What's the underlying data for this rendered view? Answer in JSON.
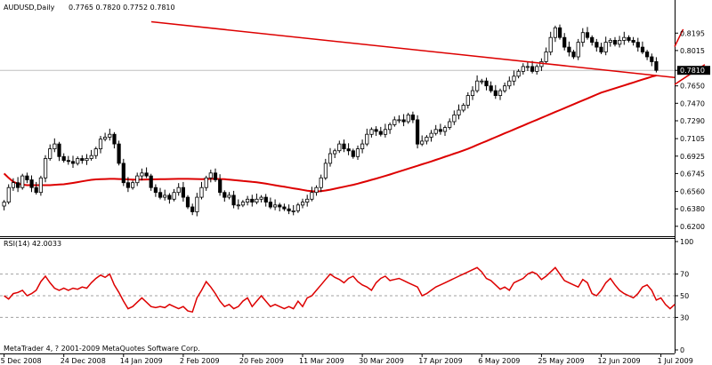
{
  "main_header": {
    "symbol": "AUDUSD,Daily",
    "ohlc": "0.7765 0.7820 0.7752 0.7810"
  },
  "rsi_header": "RSI(14) 42.0033",
  "copyright": "MetaTrader 4, ? 2001-2009 MetaQuotes Software Corp.",
  "colors": {
    "candle_bull_fill": "#ffffff",
    "candle_bear_fill": "#000000",
    "ma_line": "#dd0000",
    "trendline": "#dd0000",
    "rsi_line": "#dd0000",
    "axis": "#000000"
  },
  "chart_data": [
    {
      "type": "candlestick",
      "title": "AUDUSD,Daily",
      "ylim": [
        0.618,
        0.839
      ],
      "y_ticks": [
        "0.8195",
        "0.8015",
        "0.7810",
        "0.7650",
        "0.7470",
        "0.7290",
        "0.7105",
        "0.6925",
        "0.6745",
        "0.6560",
        "0.6380",
        "0.6200"
      ],
      "current_price_label": "0.7810",
      "x_tick_labels": [
        "5 Dec 2008",
        "24 Dec 2008",
        "14 Jan 2009",
        "2 Feb 2009",
        "20 Feb 2009",
        "11 Mar 2009",
        "30 Mar 2009",
        "17 Apr 2009",
        "6 May 2009",
        "25 May 2009",
        "12 Jun 2009",
        "1 Jul 2009"
      ],
      "close": [
        0.645,
        0.66,
        0.665,
        0.66,
        0.672,
        0.668,
        0.66,
        0.655,
        0.67,
        0.69,
        0.7,
        0.705,
        0.692,
        0.688,
        0.687,
        0.685,
        0.69,
        0.688,
        0.69,
        0.693,
        0.7,
        0.71,
        0.712,
        0.715,
        0.705,
        0.685,
        0.665,
        0.66,
        0.665,
        0.672,
        0.675,
        0.672,
        0.66,
        0.655,
        0.65,
        0.652,
        0.648,
        0.655,
        0.66,
        0.65,
        0.64,
        0.635,
        0.65,
        0.66,
        0.67,
        0.675,
        0.668,
        0.655,
        0.65,
        0.652,
        0.642,
        0.642,
        0.645,
        0.648,
        0.645,
        0.648,
        0.65,
        0.645,
        0.64,
        0.642,
        0.64,
        0.638,
        0.636,
        0.636,
        0.642,
        0.645,
        0.648,
        0.655,
        0.66,
        0.67,
        0.685,
        0.695,
        0.698,
        0.705,
        0.7,
        0.698,
        0.692,
        0.7,
        0.705,
        0.715,
        0.72,
        0.718,
        0.715,
        0.72,
        0.725,
        0.73,
        0.73,
        0.728,
        0.735,
        0.73,
        0.705,
        0.708,
        0.712,
        0.716,
        0.72,
        0.718,
        0.722,
        0.728,
        0.735,
        0.74,
        0.745,
        0.755,
        0.76,
        0.77,
        0.77,
        0.765,
        0.76,
        0.755,
        0.76,
        0.765,
        0.77,
        0.775,
        0.78,
        0.785,
        0.785,
        0.78,
        0.785,
        0.79,
        0.8,
        0.815,
        0.825,
        0.815,
        0.805,
        0.8,
        0.795,
        0.81,
        0.82,
        0.815,
        0.81,
        0.805,
        0.8,
        0.81,
        0.812,
        0.808,
        0.812,
        0.815,
        0.812,
        0.81,
        0.805,
        0.8,
        0.795,
        0.79,
        0.781
      ],
      "ma_name": "",
      "ma": [
        0.6745,
        0.67,
        0.666,
        0.664,
        0.663,
        0.6625,
        0.6625,
        0.6625,
        0.6625,
        0.6625,
        0.6625,
        0.6628,
        0.6631,
        0.6634,
        0.664,
        0.6648,
        0.6656,
        0.6664,
        0.6672,
        0.668,
        0.6684,
        0.6686,
        0.6688,
        0.669,
        0.669,
        0.6688,
        0.6686,
        0.6684,
        0.6682,
        0.6682,
        0.6682,
        0.6683,
        0.6684,
        0.6685,
        0.6686,
        0.6687,
        0.6688,
        0.6689,
        0.669,
        0.669,
        0.669,
        0.6689,
        0.6688,
        0.6687,
        0.6688,
        0.669,
        0.669,
        0.6688,
        0.6686,
        0.6682,
        0.6677,
        0.6673,
        0.6668,
        0.6664,
        0.6659,
        0.6655,
        0.6648,
        0.664,
        0.6632,
        0.6624,
        0.6616,
        0.6608,
        0.66,
        0.6592,
        0.6584,
        0.6576,
        0.6568,
        0.6562,
        0.656,
        0.6563,
        0.657,
        0.6578,
        0.6588,
        0.6598,
        0.6608,
        0.6618,
        0.6628,
        0.664,
        0.6653,
        0.6666,
        0.668,
        0.6693,
        0.6706,
        0.672,
        0.6735,
        0.675,
        0.6765,
        0.678,
        0.6795,
        0.681,
        0.6825,
        0.684,
        0.6855,
        0.687,
        0.6886,
        0.6902,
        0.6918,
        0.6934,
        0.695,
        0.6966,
        0.6983,
        0.7,
        0.702,
        0.704,
        0.706,
        0.708,
        0.71,
        0.712,
        0.714,
        0.716,
        0.718,
        0.72,
        0.722,
        0.724,
        0.726,
        0.728,
        0.73,
        0.732,
        0.734,
        0.736,
        0.738,
        0.74,
        0.742,
        0.744,
        0.746,
        0.748,
        0.75,
        0.752,
        0.754,
        0.756,
        0.758,
        0.7595,
        0.761,
        0.7625,
        0.764,
        0.7655,
        0.767,
        0.7685,
        0.77,
        0.7715,
        0.773,
        0.7745,
        0.7757
      ],
      "trendlines": [
        {
          "from": [
            0.0,
            0.8312
          ],
          "to": [
            1.0,
            0.7737
          ]
        },
        {
          "from": [
            0.807,
            0.8235
          ],
          "to": [
            1.0,
            0.8055
          ]
        },
        {
          "from": [
            0.84,
            0.787
          ],
          "to": [
            1.0,
            0.7665
          ]
        }
      ]
    },
    {
      "type": "line",
      "title": "RSI(14) 42.0033",
      "ylim": [
        0,
        100
      ],
      "y_ticks": [
        "100",
        "70",
        "50",
        "30",
        "0"
      ],
      "reference_lines": [
        70,
        50,
        30
      ],
      "values": [
        50,
        47,
        52,
        53,
        55,
        50,
        52,
        55,
        63,
        68,
        62,
        57,
        55,
        57,
        55,
        57,
        56,
        58,
        57,
        62,
        66,
        69,
        67,
        70,
        60,
        53,
        45,
        38,
        40,
        44,
        48,
        44,
        40,
        39,
        40,
        39,
        42,
        40,
        38,
        40,
        36,
        35,
        48,
        55,
        63,
        58,
        52,
        45,
        40,
        42,
        38,
        40,
        45,
        48,
        40,
        45,
        50,
        45,
        40,
        42,
        40,
        38,
        40,
        38,
        45,
        40,
        48,
        50,
        55,
        60,
        65,
        70,
        67,
        65,
        62,
        66,
        68,
        63,
        60,
        58,
        55,
        62,
        66,
        68,
        64,
        65,
        66,
        64,
        62,
        60,
        58,
        50,
        52,
        55,
        58,
        60,
        62,
        64,
        66,
        68,
        70,
        72,
        74,
        76,
        72,
        66,
        64,
        60,
        56,
        58,
        55,
        62,
        64,
        66,
        70,
        72,
        70,
        65,
        68,
        72,
        76,
        70,
        64,
        62,
        60,
        58,
        65,
        62,
        52,
        50,
        55,
        62,
        66,
        60,
        55,
        52,
        50,
        48,
        52,
        58,
        60,
        55,
        46,
        48,
        42,
        38,
        42
      ]
    }
  ]
}
